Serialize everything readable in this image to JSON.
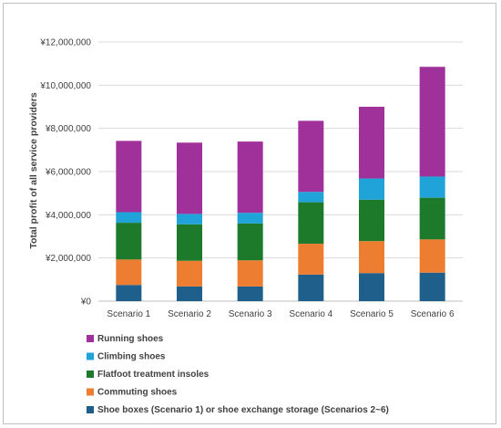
{
  "chart_data": {
    "type": "bar",
    "stacked": true,
    "title": "",
    "xlabel": "",
    "ylabel": "Total  profit of all service providers",
    "ylim": [
      0,
      12000000
    ],
    "yticks": [
      0,
      2000000,
      4000000,
      6000000,
      8000000,
      10000000,
      12000000
    ],
    "ytick_labels": [
      "¥0",
      "¥2,000,000",
      "¥4,000,000",
      "¥6,000,000",
      "¥8,000,000",
      "¥10,000,000",
      "¥12,000,000"
    ],
    "grid": true,
    "legend_position": "bottom-left",
    "categories": [
      "Scenario 1",
      "Scenario 2",
      "Scenario 3",
      "Scenario 4",
      "Scenario 5",
      "Scenario 6"
    ],
    "series": [
      {
        "name": "Shoe boxes (Scenario 1) or shoe exchange storage (Scenarios 2~6)",
        "color": "#1f5f8b",
        "values": [
          750000,
          680000,
          680000,
          1230000,
          1300000,
          1320000
        ]
      },
      {
        "name": "Commuting shoes",
        "color": "#ed7d31",
        "values": [
          1180000,
          1190000,
          1210000,
          1430000,
          1480000,
          1540000
        ]
      },
      {
        "name": "Flatfoot treatment insoles",
        "color": "#1d7a2a",
        "values": [
          1700000,
          1690000,
          1710000,
          1920000,
          1920000,
          1930000
        ]
      },
      {
        "name": "Climbing shoes",
        "color": "#1fa3d8",
        "values": [
          490000,
          480000,
          490000,
          480000,
          980000,
          980000
        ]
      },
      {
        "name": "Running shoes",
        "color": "#a0309a",
        "values": [
          3300000,
          3300000,
          3300000,
          3290000,
          3320000,
          5080000
        ]
      }
    ]
  }
}
